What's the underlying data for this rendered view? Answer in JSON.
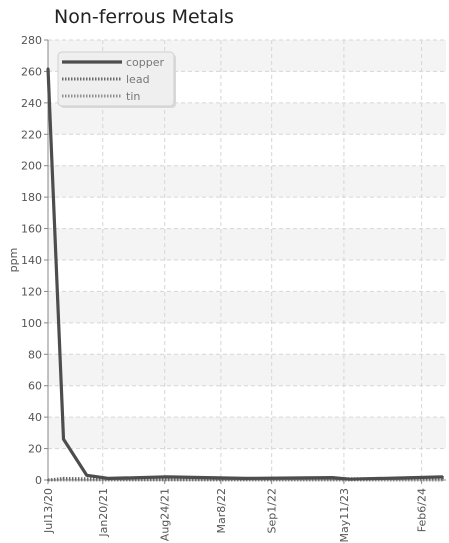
{
  "chart_data": {
    "type": "line",
    "title": "Non-ferrous Metals",
    "ylabel": "ppm",
    "xlabel": "",
    "ylim": [
      0,
      280
    ],
    "yticks": [
      0,
      20,
      40,
      60,
      80,
      100,
      120,
      140,
      160,
      180,
      200,
      220,
      240,
      260,
      280
    ],
    "xlim": [
      "2020-07-13",
      "2024-05-01"
    ],
    "xticks": [
      {
        "date": "2020-07-13",
        "label": "Jul13/20"
      },
      {
        "date": "2021-01-20",
        "label": "Jan20/21"
      },
      {
        "date": "2021-08-24",
        "label": "Aug24/21"
      },
      {
        "date": "2022-03-08",
        "label": "Mar8/22"
      },
      {
        "date": "2022-09-01",
        "label": "Sep1/22"
      },
      {
        "date": "2023-05-11",
        "label": "May11/23"
      },
      {
        "date": "2024-02-06",
        "label": "Feb6/24"
      }
    ],
    "grid": true,
    "legend_position": "top-left",
    "series": [
      {
        "name": "copper",
        "color": "#4d4d4d",
        "style": "solid",
        "points": [
          {
            "x": "2020-07-13",
            "y": 262
          },
          {
            "x": "2020-09-05",
            "y": 26
          },
          {
            "x": "2020-11-25",
            "y": 3
          },
          {
            "x": "2021-02-10",
            "y": 1
          },
          {
            "x": "2021-09-01",
            "y": 2
          },
          {
            "x": "2022-06-01",
            "y": 1
          },
          {
            "x": "2023-04-01",
            "y": 1.5
          },
          {
            "x": "2023-06-01",
            "y": 0.5
          },
          {
            "x": "2024-04-20",
            "y": 2
          }
        ]
      },
      {
        "name": "lead",
        "color": "#6a6a6a",
        "style": "dotted",
        "points": [
          {
            "x": "2020-07-13",
            "y": 0
          },
          {
            "x": "2020-09-05",
            "y": 1
          },
          {
            "x": "2021-02-10",
            "y": 0.5
          },
          {
            "x": "2022-06-01",
            "y": 0.5
          },
          {
            "x": "2024-04-20",
            "y": 1
          }
        ]
      },
      {
        "name": "tin",
        "color": "#909090",
        "style": "dotted",
        "points": [
          {
            "x": "2020-07-13",
            "y": 0
          },
          {
            "x": "2021-02-10",
            "y": 0
          },
          {
            "x": "2024-04-20",
            "y": 0
          }
        ]
      }
    ]
  }
}
